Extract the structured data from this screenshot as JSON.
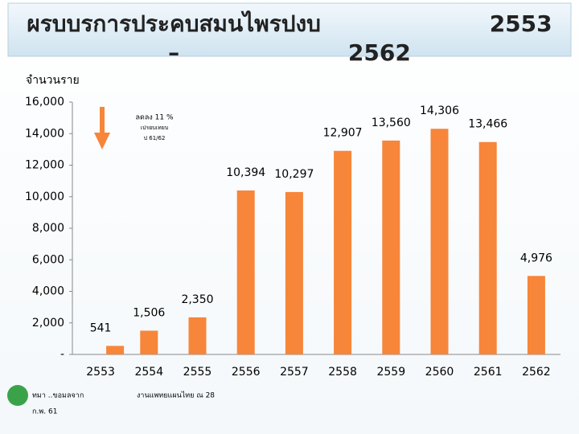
{
  "chart_data": {
    "type": "bar",
    "title": "ผรบบรการประคบสมนไพรปงบ 2553 – 2562",
    "y_label": "จำนวนราย",
    "annotation": [
      "ลดลง 11 %",
      "เปรยบเทยบ",
      "ป 61/62"
    ],
    "source": [
      "ทมา ..ขอมลจาก",
      "งานแพทยแผนไทย ณ 28",
      "ก.พ. 61"
    ],
    "categories": [
      "2553",
      "2554",
      "2555",
      "2556",
      "2557",
      "2558",
      "2559",
      "2560",
      "2561",
      "2562"
    ],
    "values": [
      541,
      1506,
      2350,
      10394,
      10297,
      12907,
      13560,
      14306,
      13466,
      4976
    ],
    "value_labels": [
      "541",
      "1,506",
      "2,350",
      "10,394",
      "10,297",
      "12,907",
      "13,560",
      "14,306",
      "13,466",
      "4,976"
    ],
    "color": "#f7853a",
    "ylim": [
      0,
      16000
    ],
    "yticks": [
      {
        "value": 0,
        "label": "-"
      },
      {
        "value": 2000,
        "label": "2,000"
      },
      {
        "value": 4000,
        "label": "4,000"
      },
      {
        "value": 6000,
        "label": "6,000"
      },
      {
        "value": 8000,
        "label": "8,000"
      },
      {
        "value": 10000,
        "label": "10,000"
      },
      {
        "value": 12000,
        "label": "12,000"
      },
      {
        "value": 14000,
        "label": "14,000"
      },
      {
        "value": 16000,
        "label": "16,000"
      }
    ]
  }
}
